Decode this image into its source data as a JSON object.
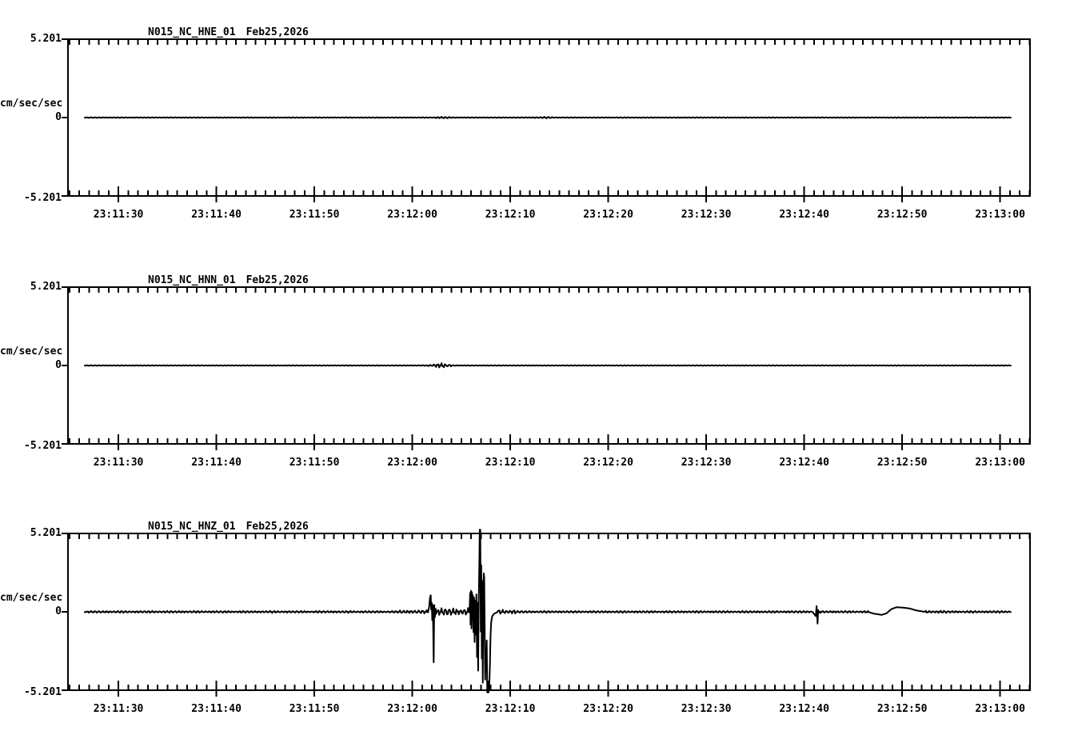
{
  "page": {
    "background": "#ffffff",
    "ink_color": "#000000"
  },
  "chart_data": [
    {
      "type": "line",
      "title": "N015_NC_HNE_01",
      "date_label": "Feb25,2026",
      "ylabel": "cm/sec/sec",
      "ytick_labels": [
        "5.201",
        "0",
        "-5.201"
      ],
      "yticks": [
        5.201,
        0,
        -5.201
      ],
      "ylim": [
        -5.201,
        5.201
      ],
      "xlim_sec": [
        24.85,
        123.05
      ],
      "trace_range_sec": [
        26.5,
        121.2
      ],
      "tick_interval_sec": 1,
      "major_tick_interval_sec": 10,
      "xticks": [
        {
          "t": 30,
          "label": "23:11:30"
        },
        {
          "t": 40,
          "label": "23:11:40"
        },
        {
          "t": 50,
          "label": "23:11:50"
        },
        {
          "t": 60,
          "label": "23:12:00"
        },
        {
          "t": 70,
          "label": "23:12:10"
        },
        {
          "t": 80,
          "label": "23:12:20"
        },
        {
          "t": 90,
          "label": "23:12:30"
        },
        {
          "t": 100,
          "label": "23:12:40"
        },
        {
          "t": 110,
          "label": "23:12:50"
        },
        {
          "t": 120,
          "label": "23:13:00"
        }
      ],
      "noise_bands": [
        [
          26.5,
          121.2,
          0.025
        ],
        [
          62.3,
          63.8,
          0.06
        ],
        [
          72.2,
          74.3,
          0.055
        ]
      ],
      "events": []
    },
    {
      "type": "line",
      "title": "N015_NC_HNN_01",
      "date_label": "Feb25,2026",
      "ylabel": "cm/sec/sec",
      "ytick_labels": [
        "5.201",
        "0",
        "-5.201"
      ],
      "yticks": [
        5.201,
        0,
        -5.201
      ],
      "ylim": [
        -5.201,
        5.201
      ],
      "xlim_sec": [
        24.85,
        123.05
      ],
      "trace_range_sec": [
        26.5,
        121.2
      ],
      "tick_interval_sec": 1,
      "major_tick_interval_sec": 10,
      "xticks": [
        {
          "t": 30,
          "label": "23:11:30"
        },
        {
          "t": 40,
          "label": "23:11:40"
        },
        {
          "t": 50,
          "label": "23:11:50"
        },
        {
          "t": 60,
          "label": "23:12:00"
        },
        {
          "t": 70,
          "label": "23:12:10"
        },
        {
          "t": 80,
          "label": "23:12:20"
        },
        {
          "t": 90,
          "label": "23:12:30"
        },
        {
          "t": 100,
          "label": "23:12:40"
        },
        {
          "t": 110,
          "label": "23:12:50"
        },
        {
          "t": 120,
          "label": "23:13:00"
        }
      ],
      "noise_bands": [
        [
          26.5,
          121.2,
          0.025
        ],
        [
          61.5,
          62.1,
          0.07
        ],
        [
          62.1,
          63.3,
          0.17
        ],
        [
          63.3,
          64.0,
          0.08
        ]
      ],
      "events": []
    },
    {
      "type": "line",
      "title": "N015_NC_HNZ_01",
      "date_label": "Feb25,2026",
      "ylabel": "cm/sec/sec",
      "ytick_labels": [
        "5.201",
        "0",
        "-5.201"
      ],
      "yticks": [
        5.201,
        0,
        -5.201
      ],
      "ylim": [
        -5.201,
        5.201
      ],
      "xlim_sec": [
        24.85,
        123.05
      ],
      "trace_range_sec": [
        26.5,
        121.2
      ],
      "tick_interval_sec": 1,
      "major_tick_interval_sec": 10,
      "xticks": [
        {
          "t": 30,
          "label": "23:11:30"
        },
        {
          "t": 40,
          "label": "23:11:40"
        },
        {
          "t": 50,
          "label": "23:11:50"
        },
        {
          "t": 60,
          "label": "23:12:00"
        },
        {
          "t": 70,
          "label": "23:12:10"
        },
        {
          "t": 80,
          "label": "23:12:20"
        },
        {
          "t": 90,
          "label": "23:12:30"
        },
        {
          "t": 100,
          "label": "23:12:40"
        },
        {
          "t": 110,
          "label": "23:12:50"
        },
        {
          "t": 120,
          "label": "23:13:00"
        }
      ],
      "noise_bands": [
        [
          26.5,
          121.2,
          0.07
        ],
        [
          58.5,
          61.6,
          0.12
        ],
        [
          62.5,
          65.85,
          0.27
        ],
        [
          68.7,
          70.6,
          0.16
        ],
        [
          112.3,
          114.5,
          0.09
        ]
      ],
      "events": [
        [
          [
            61.62,
            0.05
          ],
          [
            61.72,
            0.35
          ],
          [
            61.8,
            0.95
          ],
          [
            61.88,
            1.1
          ],
          [
            61.93,
            0.15
          ],
          [
            61.98,
            0.6
          ],
          [
            62.03,
            -0.55
          ],
          [
            62.08,
            0.45
          ],
          [
            62.13,
            -1.1
          ],
          [
            62.18,
            -3.35
          ],
          [
            62.24,
            0.45
          ],
          [
            62.3,
            -0.35
          ],
          [
            62.38,
            0.2
          ],
          [
            62.45,
            -0.12
          ],
          [
            62.5,
            0.05
          ]
        ],
        [
          [
            65.85,
            0.25
          ],
          [
            65.9,
            1.25
          ],
          [
            65.94,
            -0.85
          ],
          [
            65.98,
            1.4
          ],
          [
            66.03,
            -1.1
          ],
          [
            66.08,
            1.3
          ],
          [
            66.13,
            -0.5
          ],
          [
            66.18,
            1.1
          ],
          [
            66.24,
            -1.35
          ],
          [
            66.3,
            0.95
          ],
          [
            66.36,
            -2.0
          ],
          [
            66.42,
            0.75
          ],
          [
            66.48,
            -1.5
          ],
          [
            66.54,
            1.15
          ],
          [
            66.6,
            -3.0
          ],
          [
            66.66,
            0.6
          ],
          [
            66.72,
            -3.9
          ],
          [
            66.78,
            1.0
          ],
          [
            66.84,
            3.2
          ],
          [
            66.88,
            5.45
          ],
          [
            66.94,
            5.45
          ],
          [
            66.99,
            -1.3
          ],
          [
            67.04,
            3.1
          ],
          [
            67.09,
            -3.1
          ],
          [
            67.14,
            2.05
          ],
          [
            67.19,
            -4.7
          ],
          [
            67.25,
            1.2
          ],
          [
            67.3,
            2.55
          ],
          [
            67.34,
            2.3
          ],
          [
            67.39,
            -1.1
          ],
          [
            67.44,
            -4.5
          ],
          [
            67.49,
            -2.4
          ],
          [
            67.54,
            -3.6
          ],
          [
            67.59,
            -1.9
          ],
          [
            67.65,
            -5.35
          ],
          [
            67.72,
            -4.6
          ],
          [
            67.78,
            -5.35
          ],
          [
            67.85,
            -4.9
          ],
          [
            67.92,
            -3.6
          ],
          [
            67.98,
            -1.6
          ],
          [
            68.05,
            -0.7
          ],
          [
            68.15,
            -0.3
          ],
          [
            68.35,
            -0.12
          ],
          [
            68.6,
            -0.05
          ],
          [
            68.7,
            0.0
          ]
        ],
        [
          [
            100.9,
            -0.05
          ],
          [
            101.05,
            -0.18
          ],
          [
            101.18,
            -0.28
          ],
          [
            101.26,
            0.38
          ],
          [
            101.31,
            -0.1
          ],
          [
            101.36,
            -0.78
          ],
          [
            101.43,
            0.12
          ],
          [
            101.52,
            -0.06
          ],
          [
            101.62,
            0.0
          ]
        ],
        [
          [
            106.5,
            0.0
          ],
          [
            107.1,
            -0.12
          ],
          [
            107.9,
            -0.2
          ],
          [
            108.4,
            -0.1
          ],
          [
            108.9,
            0.18
          ],
          [
            109.4,
            0.3
          ],
          [
            110.1,
            0.28
          ],
          [
            110.8,
            0.22
          ],
          [
            111.4,
            0.1
          ],
          [
            112.3,
            0.0
          ]
        ]
      ]
    }
  ]
}
